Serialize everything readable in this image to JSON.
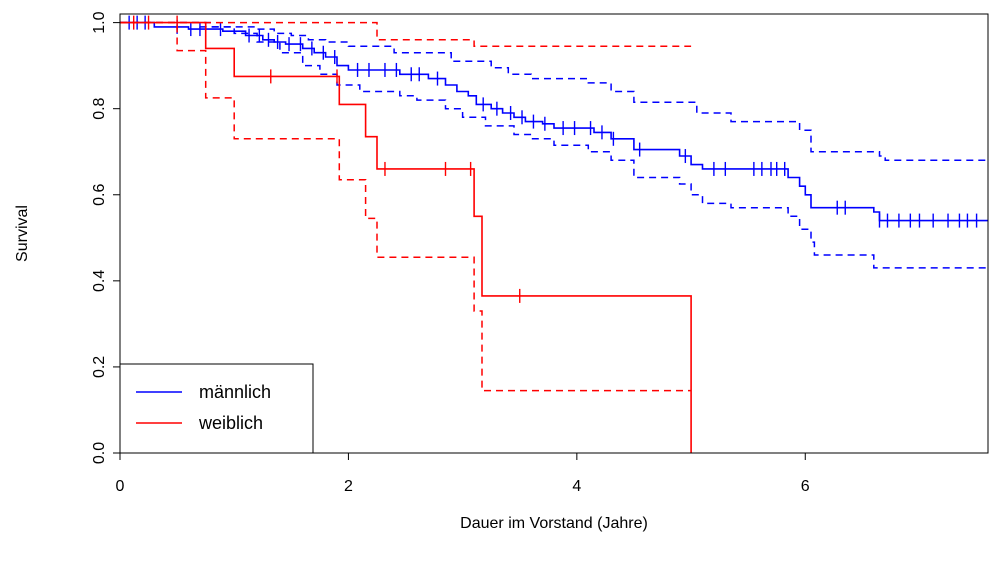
{
  "chart_data": {
    "type": "line",
    "title": "",
    "xlabel": "Dauer im Vorstand (Jahre)",
    "ylabel": "Survival",
    "xlim": [
      0,
      7.6
    ],
    "ylim": [
      0,
      1.02
    ],
    "x_ticks": [
      0,
      2,
      4,
      6
    ],
    "y_ticks": [
      0.0,
      0.2,
      0.4,
      0.6,
      0.8,
      1.0
    ],
    "x_tick_labels": [
      "0",
      "2",
      "4",
      "6"
    ],
    "y_tick_labels": [
      "0.0",
      "0.2",
      "0.4",
      "0.6",
      "0.8",
      "1.0"
    ],
    "grid": false,
    "legend_position": "bottom-left",
    "series": [
      {
        "name": "männlich",
        "color": "#0000ff",
        "estimate": [
          [
            0,
            1.0
          ],
          [
            0.3,
            0.99
          ],
          [
            0.6,
            0.985
          ],
          [
            0.9,
            0.98
          ],
          [
            1.1,
            0.97
          ],
          [
            1.25,
            0.96
          ],
          [
            1.35,
            0.955
          ],
          [
            1.45,
            0.95
          ],
          [
            1.6,
            0.94
          ],
          [
            1.7,
            0.93
          ],
          [
            1.8,
            0.92
          ],
          [
            1.9,
            0.9
          ],
          [
            2.0,
            0.89
          ],
          [
            2.45,
            0.88
          ],
          [
            2.7,
            0.87
          ],
          [
            2.85,
            0.855
          ],
          [
            2.95,
            0.84
          ],
          [
            3.05,
            0.83
          ],
          [
            3.12,
            0.81
          ],
          [
            3.25,
            0.8
          ],
          [
            3.35,
            0.79
          ],
          [
            3.45,
            0.78
          ],
          [
            3.55,
            0.77
          ],
          [
            3.7,
            0.765
          ],
          [
            3.8,
            0.755
          ],
          [
            4.15,
            0.745
          ],
          [
            4.3,
            0.73
          ],
          [
            4.5,
            0.705
          ],
          [
            4.9,
            0.69
          ],
          [
            5.0,
            0.67
          ],
          [
            5.1,
            0.66
          ],
          [
            5.85,
            0.64
          ],
          [
            5.95,
            0.62
          ],
          [
            6.0,
            0.6
          ],
          [
            6.05,
            0.57
          ],
          [
            6.6,
            0.56
          ],
          [
            6.65,
            0.54
          ],
          [
            7.6,
            0.54
          ]
        ],
        "upper": [
          [
            0,
            1.0
          ],
          [
            0.8,
            0.99
          ],
          [
            1.2,
            0.985
          ],
          [
            1.35,
            0.975
          ],
          [
            1.5,
            0.97
          ],
          [
            1.65,
            0.96
          ],
          [
            1.8,
            0.955
          ],
          [
            2.0,
            0.945
          ],
          [
            2.4,
            0.93
          ],
          [
            2.9,
            0.91
          ],
          [
            3.25,
            0.895
          ],
          [
            3.4,
            0.88
          ],
          [
            3.6,
            0.87
          ],
          [
            4.1,
            0.86
          ],
          [
            4.3,
            0.84
          ],
          [
            4.5,
            0.815
          ],
          [
            5.05,
            0.79
          ],
          [
            5.35,
            0.77
          ],
          [
            5.95,
            0.75
          ],
          [
            6.05,
            0.7
          ],
          [
            6.65,
            0.69
          ],
          [
            6.7,
            0.68
          ],
          [
            7.6,
            0.68
          ]
        ],
        "lower": [
          [
            0,
            1.0
          ],
          [
            0.7,
            0.99
          ],
          [
            1.0,
            0.975
          ],
          [
            1.2,
            0.955
          ],
          [
            1.4,
            0.93
          ],
          [
            1.6,
            0.9
          ],
          [
            1.75,
            0.88
          ],
          [
            1.9,
            0.855
          ],
          [
            2.1,
            0.84
          ],
          [
            2.45,
            0.83
          ],
          [
            2.6,
            0.82
          ],
          [
            2.85,
            0.8
          ],
          [
            3.0,
            0.78
          ],
          [
            3.2,
            0.76
          ],
          [
            3.45,
            0.74
          ],
          [
            3.6,
            0.73
          ],
          [
            3.8,
            0.715
          ],
          [
            4.1,
            0.7
          ],
          [
            4.3,
            0.68
          ],
          [
            4.5,
            0.64
          ],
          [
            4.9,
            0.625
          ],
          [
            5.0,
            0.6
          ],
          [
            5.1,
            0.58
          ],
          [
            5.35,
            0.57
          ],
          [
            5.85,
            0.55
          ],
          [
            5.95,
            0.52
          ],
          [
            6.05,
            0.49
          ],
          [
            6.08,
            0.46
          ],
          [
            6.6,
            0.43
          ],
          [
            7.6,
            0.43
          ]
        ],
        "censor_x": [
          0.08,
          0.15,
          0.22,
          0.5,
          0.62,
          0.7,
          0.88,
          1.13,
          1.22,
          1.3,
          1.38,
          1.48,
          1.58,
          1.68,
          1.78,
          1.88,
          2.08,
          2.18,
          2.32,
          2.42,
          2.55,
          2.62,
          2.78,
          3.18,
          3.3,
          3.42,
          3.52,
          3.62,
          3.72,
          3.88,
          3.98,
          4.12,
          4.22,
          4.32,
          4.55,
          4.95,
          5.2,
          5.3,
          5.55,
          5.62,
          5.7,
          5.75,
          5.82,
          6.28,
          6.35,
          6.65,
          6.72,
          6.82,
          6.92,
          7.0,
          7.12,
          7.25,
          7.35,
          7.42,
          7.5
        ]
      },
      {
        "name": "weiblich",
        "color": "#ff0000",
        "estimate": [
          [
            0,
            1.0
          ],
          [
            0.75,
            0.94
          ],
          [
            1.0,
            0.875
          ],
          [
            1.92,
            0.81
          ],
          [
            2.15,
            0.735
          ],
          [
            2.25,
            0.66
          ],
          [
            3.1,
            0.55
          ],
          [
            3.17,
            0.365
          ],
          [
            5.0,
            0.0
          ]
        ],
        "upper": [
          [
            0,
            1.0
          ],
          [
            2.25,
            0.96
          ],
          [
            3.1,
            0.945
          ],
          [
            3.17,
            0.945
          ],
          [
            5.0,
            0.945
          ]
        ],
        "lower": [
          [
            0,
            1.0
          ],
          [
            0.5,
            0.935
          ],
          [
            0.75,
            0.825
          ],
          [
            1.0,
            0.73
          ],
          [
            1.92,
            0.635
          ],
          [
            2.15,
            0.545
          ],
          [
            2.25,
            0.455
          ],
          [
            3.1,
            0.33
          ],
          [
            3.17,
            0.145
          ],
          [
            5.0,
            0.145
          ]
        ],
        "censor_x": [
          0.12,
          0.25,
          0.5,
          1.32,
          1.9,
          2.32,
          2.85,
          3.07,
          3.5
        ]
      }
    ]
  }
}
